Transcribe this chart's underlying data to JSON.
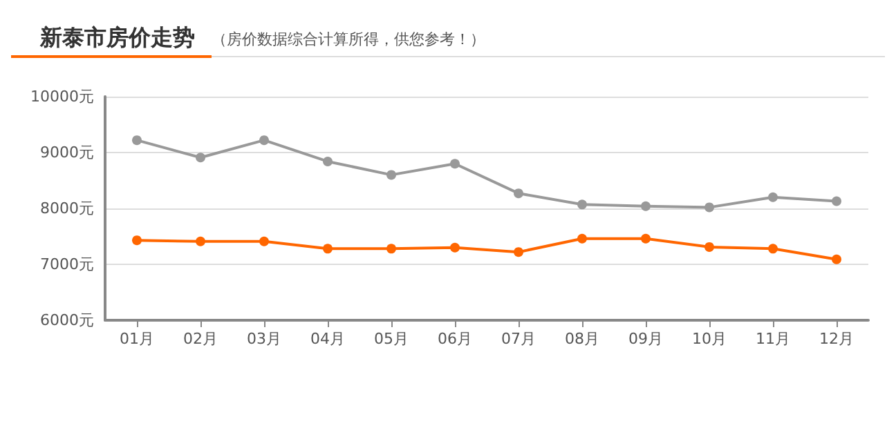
{
  "chart_data": {
    "type": "line",
    "title": "新泰市房价走势",
    "subtitle": "（房价数据综合计算所得，供您参考！）",
    "categories": [
      "01月",
      "02月",
      "03月",
      "04月",
      "05月",
      "06月",
      "07月",
      "08月",
      "09月",
      "10月",
      "11月",
      "12月"
    ],
    "series": [
      {
        "color": "#999999",
        "values": [
          9220,
          8910,
          9220,
          8840,
          8600,
          8800,
          8270,
          8070,
          8040,
          8020,
          8200,
          8130
        ]
      },
      {
        "color": "#ff6600",
        "values": [
          7430,
          7410,
          7410,
          7280,
          7280,
          7300,
          7220,
          7460,
          7460,
          7310,
          7280,
          7090
        ]
      }
    ],
    "ylim": [
      6000,
      10000
    ],
    "yticks": [
      {
        "value": 6000,
        "label": "6000元"
      },
      {
        "value": 7000,
        "label": "7000元"
      },
      {
        "value": 8000,
        "label": "8000元"
      },
      {
        "value": 9000,
        "label": "9000元"
      },
      {
        "value": 10000,
        "label": "10000元"
      }
    ],
    "grid": "y",
    "marker": "circle",
    "line_style": "solid"
  }
}
